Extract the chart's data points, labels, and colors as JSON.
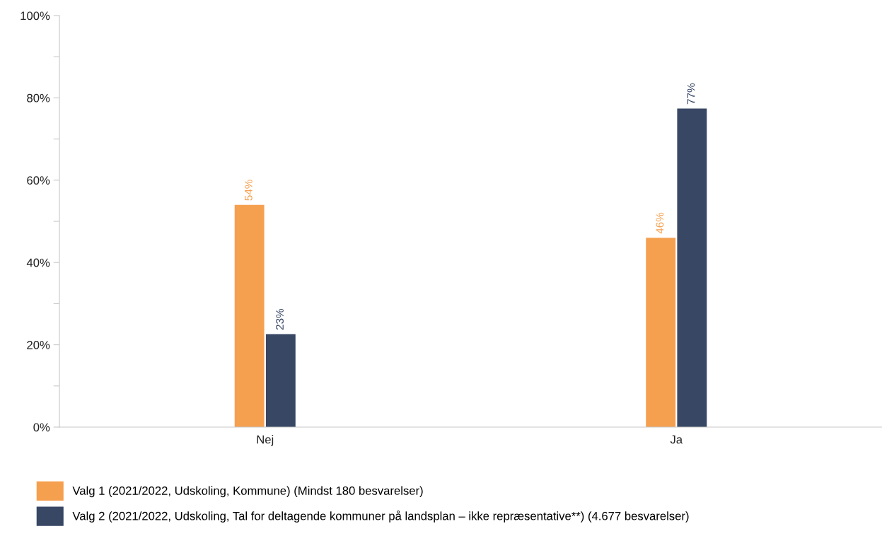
{
  "chart_data": {
    "type": "bar",
    "categories": [
      "Nej",
      "Ja"
    ],
    "series": [
      {
        "name": "Valg 1 (2021/2022, Udskoling, Kommune) (Mindst 180 besvarelser)",
        "color": "#f5a04f",
        "values": [
          54,
          46
        ],
        "value_labels": [
          "54%",
          "46%"
        ]
      },
      {
        "name": "Valg 2 (2021/2022, Udskoling, Tal for deltagende kommuner på landsplan – ikke repræsentative**) (4.677 besvarelser)",
        "color": "#374764",
        "values": [
          22.6,
          77.4
        ],
        "value_labels": [
          "23%",
          "77%"
        ]
      }
    ],
    "ylim": [
      0,
      100
    ],
    "yticks": [
      {
        "value": 0,
        "label": "0%"
      },
      {
        "value": 10,
        "label": null
      },
      {
        "value": 20,
        "label": "20%"
      },
      {
        "value": 30,
        "label": null
      },
      {
        "value": 40,
        "label": "40%"
      },
      {
        "value": 50,
        "label": null
      },
      {
        "value": 60,
        "label": "60%"
      },
      {
        "value": 70,
        "label": null
      },
      {
        "value": 80,
        "label": "80%"
      },
      {
        "value": 90,
        "label": null
      },
      {
        "value": 100,
        "label": "100%"
      }
    ],
    "grid": false,
    "legend": "bottom left"
  }
}
